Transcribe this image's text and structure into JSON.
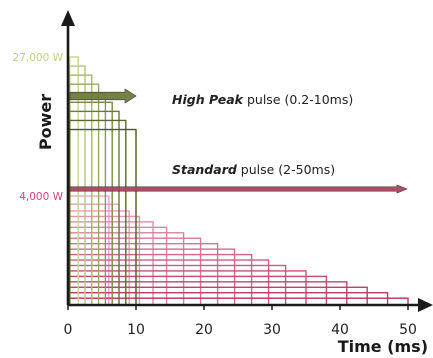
{
  "chart_data": {
    "type": "bar",
    "xlabel": "Time (ms)",
    "ylabel": "Power",
    "xlim": [
      0,
      50
    ],
    "x_ticks": [
      "0",
      "10",
      "20",
      "30",
      "40",
      "50"
    ],
    "x_tick_values": [
      0,
      10,
      20,
      30,
      40,
      50
    ],
    "y_labels": [
      {
        "text": "27,000 W",
        "value": 27000,
        "color": "#c4cf86"
      },
      {
        "text": "4,000 W",
        "value": 4000,
        "color": "#d1457a"
      }
    ],
    "grid": false,
    "series": [
      {
        "name": "High Peak pulse (0.2-10ms)",
        "label_emph": "High Peak",
        "label_rest": " pulse (0.2-10ms)",
        "color_light": "#c9d48e",
        "color_dark": "#4a5a1c",
        "arrow_color": "#6e7c3c",
        "pulses": [
          {
            "duration_ms": 1.5,
            "power_w": 27000
          },
          {
            "duration_ms": 2.5,
            "power_w": 25500
          },
          {
            "duration_ms": 3.5,
            "power_w": 24000
          },
          {
            "duration_ms": 4.5,
            "power_w": 22500
          },
          {
            "duration_ms": 5.5,
            "power_w": 21000
          },
          {
            "duration_ms": 6.5,
            "power_w": 19500
          },
          {
            "duration_ms": 7.5,
            "power_w": 18000
          },
          {
            "duration_ms": 8.5,
            "power_w": 16500
          },
          {
            "duration_ms": 10,
            "power_w": 15000
          }
        ]
      },
      {
        "name": "Standard pulse (2-50ms)",
        "label_emph": "Standard",
        "label_rest": " pulse (2-50ms)",
        "color_light": "#e9a9c0",
        "color_dark": "#b8325e",
        "arrow_color": "#a8465f",
        "pulses": [
          {
            "duration_ms": 6,
            "power_w": 4000
          },
          {
            "duration_ms": 7.5,
            "power_w": 3700
          },
          {
            "duration_ms": 9,
            "power_w": 3450
          },
          {
            "duration_ms": 10.5,
            "power_w": 3250
          },
          {
            "duration_ms": 12.5,
            "power_w": 3050
          },
          {
            "duration_ms": 14.5,
            "power_w": 2850
          },
          {
            "duration_ms": 17,
            "power_w": 2650
          },
          {
            "duration_ms": 19.5,
            "power_w": 2450
          },
          {
            "duration_ms": 22,
            "power_w": 2250
          },
          {
            "duration_ms": 24.5,
            "power_w": 2050
          },
          {
            "duration_ms": 27,
            "power_w": 1850
          },
          {
            "duration_ms": 29.5,
            "power_w": 1650
          },
          {
            "duration_ms": 32,
            "power_w": 1450
          },
          {
            "duration_ms": 35,
            "power_w": 1250
          },
          {
            "duration_ms": 38,
            "power_w": 1050
          },
          {
            "duration_ms": 41,
            "power_w": 850
          },
          {
            "duration_ms": 44,
            "power_w": 650
          },
          {
            "duration_ms": 47,
            "power_w": 450
          },
          {
            "duration_ms": 50,
            "power_w": 250
          }
        ]
      }
    ]
  }
}
